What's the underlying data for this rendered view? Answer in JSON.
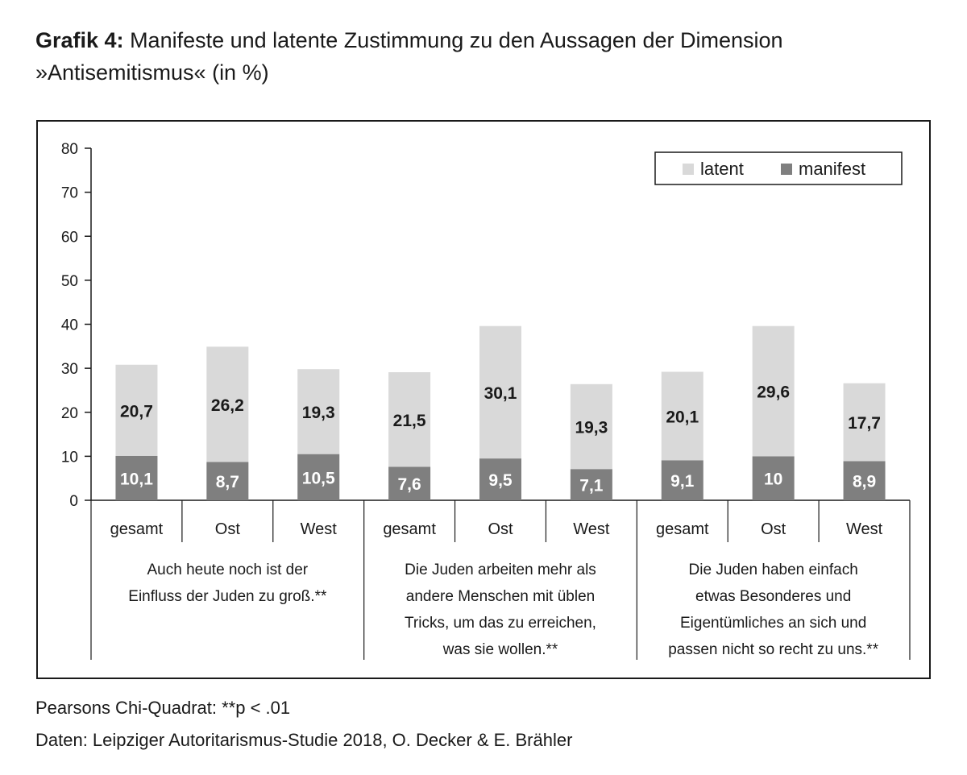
{
  "title": {
    "bold": "Grafik 4:",
    "line1": "Manifeste und latente Zustimmung zu den Aussagen der Dimension",
    "line2": "»Antisemitismus« (in %)"
  },
  "chart_data": {
    "type": "bar",
    "stacked": true,
    "ylim": [
      0,
      80
    ],
    "yticks": [
      0,
      10,
      20,
      30,
      40,
      50,
      60,
      70,
      80
    ],
    "legend": {
      "position": "top-right",
      "entries": [
        "latent",
        "manifest"
      ]
    },
    "colors": {
      "latent": "#d9d9d9",
      "manifest": "#7f7f7f",
      "frame": "#1a1a1a"
    },
    "categories": [
      "gesamt",
      "Ost",
      "West",
      "gesamt",
      "Ost",
      "West",
      "gesamt",
      "Ost",
      "West"
    ],
    "groups": [
      {
        "label_lines": [
          "Auch heute noch ist der",
          "Einfluss der Juden zu groß.**"
        ]
      },
      {
        "label_lines": [
          "Die Juden arbeiten mehr als",
          "andere Menschen mit üblen",
          "Tricks, um das zu erreichen,",
          "was sie wollen.**"
        ]
      },
      {
        "label_lines": [
          "Die Juden haben einfach",
          "etwas Besonderes und",
          "Eigentümliches an sich und",
          "passen nicht so recht zu uns.**"
        ]
      }
    ],
    "series": [
      {
        "name": "manifest",
        "values": [
          10.1,
          8.7,
          10.5,
          7.6,
          9.5,
          7.1,
          9.1,
          10,
          8.9
        ],
        "labels": [
          "10,1",
          "8,7",
          "10,5",
          "7,6",
          "9,5",
          "7,1",
          "9,1",
          "10",
          "8,9"
        ]
      },
      {
        "name": "latent",
        "values": [
          20.7,
          26.2,
          19.3,
          21.5,
          30.1,
          19.3,
          20.1,
          29.6,
          17.7
        ],
        "labels": [
          "20,7",
          "26,2",
          "19,3",
          "21,5",
          "30,1",
          "19,3",
          "20,1",
          "29,6",
          "17,7"
        ]
      }
    ]
  },
  "footnotes": {
    "significance": "Pearsons Chi-Quadrat: **p < .01",
    "source": "Daten: Leipziger Autoritarismus-Studie 2018, O. Decker & E. Brähler"
  }
}
